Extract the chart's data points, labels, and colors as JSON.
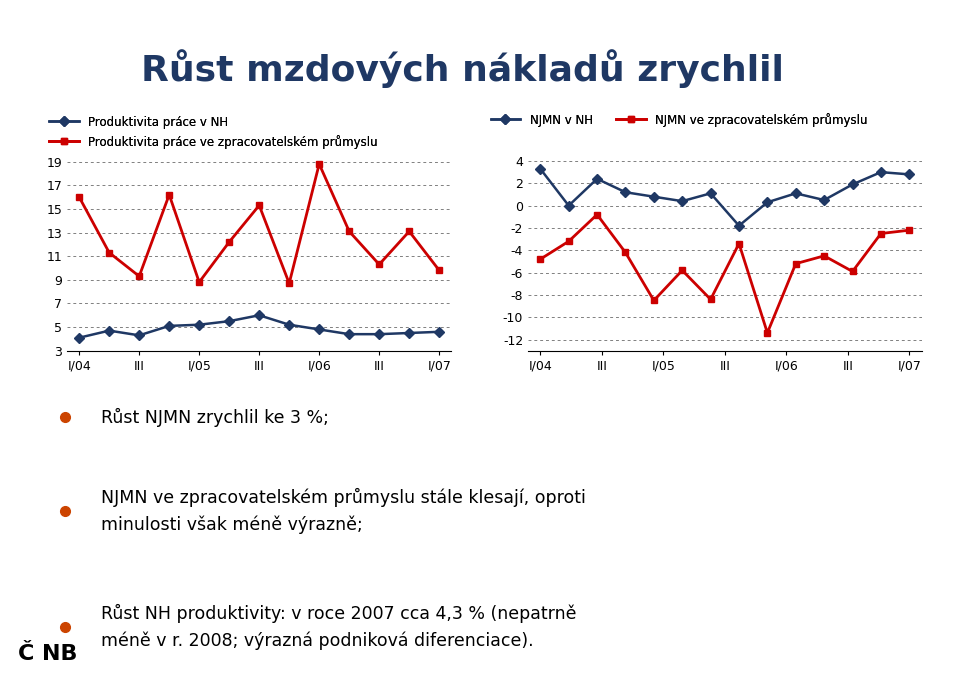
{
  "title": "Růst mzdových nákladů zrychlil",
  "title_color": "#1F3864",
  "background_color": "#FFFFFF",
  "header_bar_color": "#2E4D8A",
  "chart1": {
    "x_labels": [
      "I/04",
      "III",
      "I/05",
      "III",
      "I/06",
      "III",
      "I/07"
    ],
    "series1_label": "Produktivita práce v NH",
    "series1_color": "#1F3864",
    "series1_values": [
      4.1,
      4.7,
      4.3,
      5.1,
      5.2,
      5.5,
      6.0,
      5.2,
      4.8,
      4.4,
      4.4,
      4.5,
      4.6
    ],
    "series2_label": "Produktivita práce ve zpracovatelském průmyslu",
    "series2_color": "#CC0000",
    "series2_values": [
      16.0,
      11.3,
      9.3,
      16.2,
      8.8,
      12.2,
      15.3,
      8.7,
      18.8,
      13.1,
      10.3,
      13.1,
      9.8
    ],
    "ylim": [
      3,
      20
    ],
    "yticks": [
      3,
      5,
      7,
      9,
      11,
      13,
      15,
      17,
      19
    ]
  },
  "chart2": {
    "x_labels": [
      "I/04",
      "III",
      "I/05",
      "III",
      "I/06",
      "III",
      "I/07"
    ],
    "series1_label": "NJMN v NH",
    "series1_color": "#1F3864",
    "series1_values": [
      3.3,
      0.0,
      2.4,
      1.2,
      0.8,
      0.4,
      1.1,
      -1.8,
      0.3,
      1.1,
      0.5,
      1.9,
      3.0,
      2.8
    ],
    "series2_label": "NJMN ve zpracovatelském průmyslu",
    "series2_color": "#CC0000",
    "series2_values": [
      -4.8,
      -3.2,
      -0.8,
      -4.2,
      -8.5,
      -5.8,
      -8.4,
      -3.4,
      -11.4,
      -5.2,
      -4.5,
      -5.9,
      -2.5,
      -2.2
    ],
    "ylim": [
      -13,
      5
    ],
    "yticks": [
      -12,
      -10,
      -8,
      -6,
      -4,
      -2,
      0,
      2,
      4
    ]
  },
  "bullet_points": [
    "Růst NJMN zrychlil ke 3 %;",
    "NJMN ve zpracovatelském průmyslu stále klesají, oproti\nminulosti však méně výrazně;",
    "Růst NH produktivity: v roce 2007 cca 4,3 % (nepatrně\nméně v r. 2008; výrazná podniková diferenciace)."
  ],
  "bullet_color": "#CC4400",
  "text_color": "#000000",
  "line_color": "#4472C4"
}
